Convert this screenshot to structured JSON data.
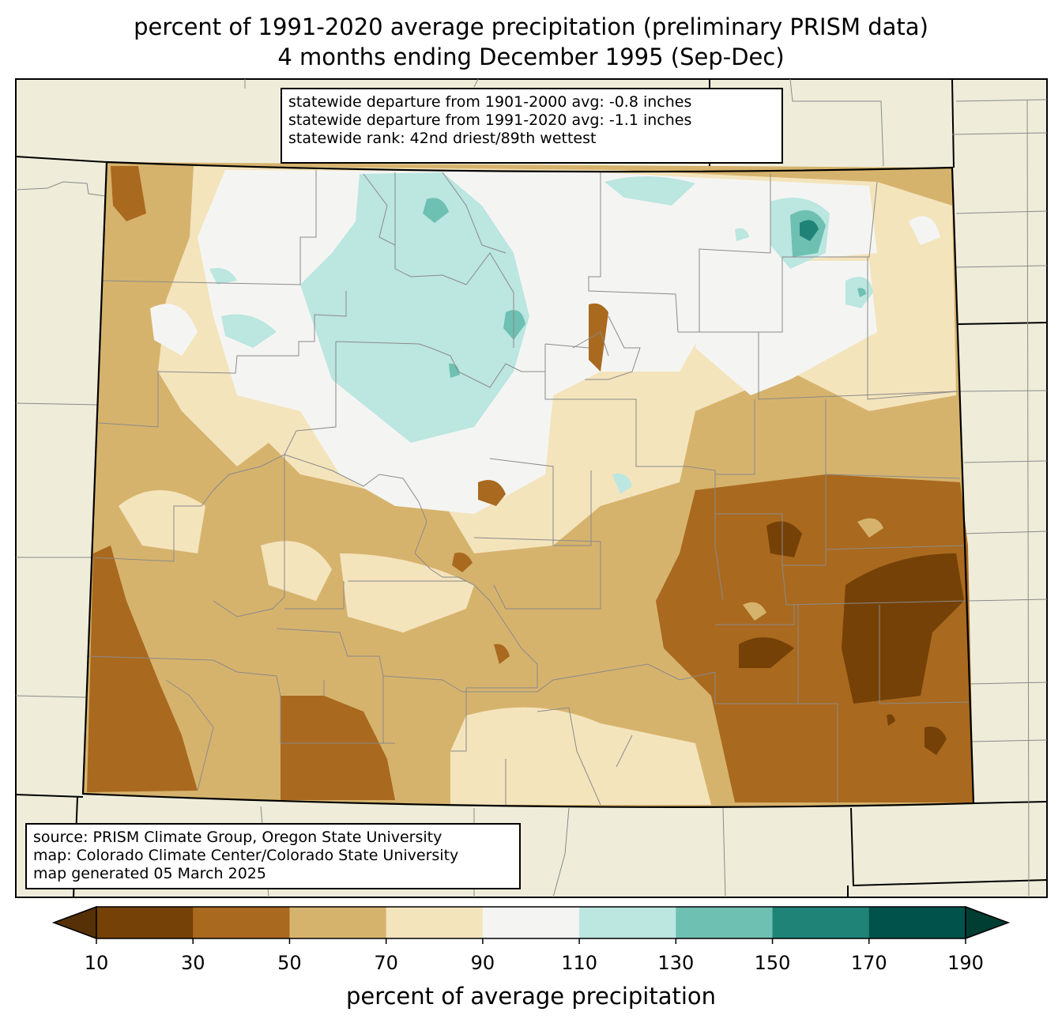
{
  "title": {
    "line1": "percent of 1991-2020 average precipitation (preliminary PRISM data)",
    "line2": "4 months ending December 1995 (Sep-Dec)"
  },
  "stats": {
    "line1": "statewide departure from 1901-2000 avg: -0.8 inches",
    "line2": "statewide departure from 1991-2020 avg: -1.1 inches",
    "line3": "statewide rank: 42nd driest/89th wettest"
  },
  "credits": {
    "line1": "source: PRISM Climate Group, Oregon State University",
    "line2": "map: Colorado Climate Center/Colorado State University",
    "line3": "map generated 05 March 2025"
  },
  "colorbar": {
    "label": "percent of average precipitation",
    "ticks": [
      "10",
      "30",
      "50",
      "70",
      "90",
      "110",
      "130",
      "150",
      "170",
      "190"
    ],
    "colors": [
      "#754106",
      "#a9691f",
      "#d6b36d",
      "#f4e4bc",
      "#f4f5f3",
      "#bce6e0",
      "#6ec0b2",
      "#1f8378",
      "#00524a"
    ],
    "under_color": "#563006",
    "over_color": "#003d33"
  },
  "map_colors": {
    "background": "#efedda",
    "state_border": "#000000",
    "county_border": "#8a8a8a"
  }
}
